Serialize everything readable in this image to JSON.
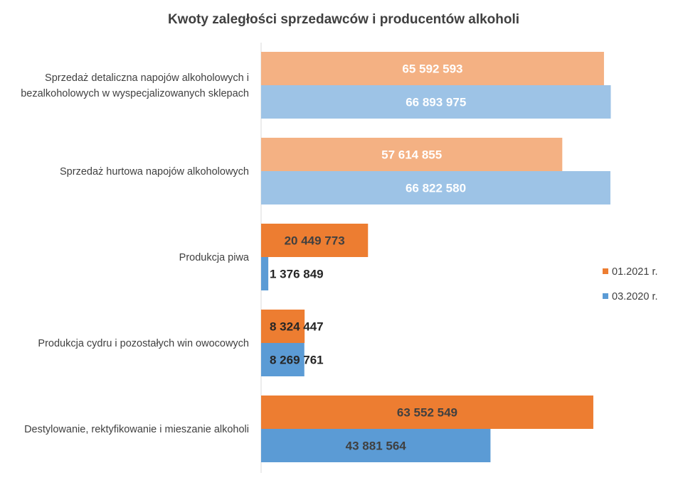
{
  "chart_data": {
    "type": "bar",
    "orientation": "horizontal",
    "title": "Kwoty zaległości sprzedawców i producentów alkoholi",
    "xlabel": "",
    "ylabel": "",
    "xlim": [
      0,
      70000000
    ],
    "grid": false,
    "legend_position": "right",
    "categories": [
      [
        "Sprzedaż detaliczna napojów alkoholowych i",
        "bezalkoholowych w wyspecjalizowanych sklepach"
      ],
      [
        "Sprzedaż hurtowa napojów alkoholowych"
      ],
      [
        "Produkcja piwa"
      ],
      [
        "Produkcja cydru i pozostałych win owocowych"
      ],
      [
        "Destylowanie, rektyfikowanie i mieszanie alkoholi"
      ]
    ],
    "series": [
      {
        "name": "01.2021 r.",
        "color": "#ED7D31",
        "light_color": "#F4B183",
        "values": [
          65592593,
          57614855,
          20449773,
          8324447,
          63552549
        ],
        "labels": [
          "65 592 593",
          "57 614 855",
          "20 449 773",
          "8 324 447",
          "63 552 549"
        ]
      },
      {
        "name": "03.2020 r.",
        "color": "#5B9BD5",
        "light_color": "#9DC3E6",
        "values": [
          66893975,
          66822580,
          1376849,
          8269761,
          43881564
        ],
        "labels": [
          "66 893 975",
          "66 822 580",
          "1 376 849",
          "8 269 761",
          "43 881 564"
        ]
      }
    ],
    "light_rows": [
      0,
      1
    ]
  }
}
